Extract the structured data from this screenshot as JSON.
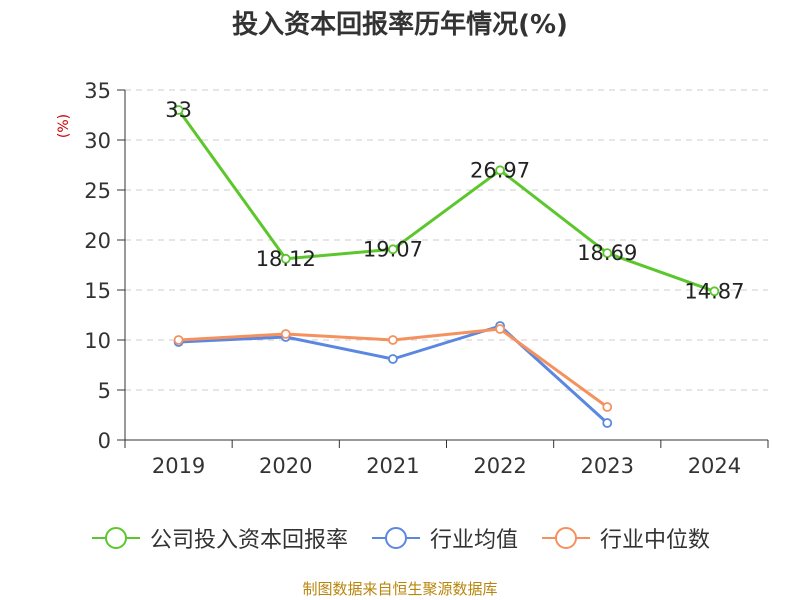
{
  "chart_data": {
    "type": "line",
    "title": "投入资本回报率历年情况(%)",
    "ylabel": "(%)",
    "xlabel": "",
    "categories": [
      "2019",
      "2020",
      "2021",
      "2022",
      "2023",
      "2024"
    ],
    "ylim": [
      0,
      35
    ],
    "yticks": [
      0,
      5,
      10,
      15,
      20,
      25,
      30,
      35
    ],
    "grid": true,
    "legend_position": "bottom",
    "series": [
      {
        "name": "公司投入资本回报率",
        "color": "#5cc72c",
        "values": [
          33,
          18.12,
          19.07,
          26.97,
          18.69,
          14.87
        ],
        "labels": [
          "33",
          "18.12",
          "19.07",
          "26.97",
          "18.69",
          "14.87"
        ]
      },
      {
        "name": "行业均值",
        "color": "#5b87e0",
        "values": [
          9.8,
          10.3,
          8.1,
          11.4,
          1.7,
          null
        ]
      },
      {
        "name": "行业中位数",
        "color": "#f5915e",
        "values": [
          10.0,
          10.6,
          10.0,
          11.1,
          3.3,
          null
        ]
      }
    ]
  },
  "source": "制图数据来自恒生聚源数据库"
}
